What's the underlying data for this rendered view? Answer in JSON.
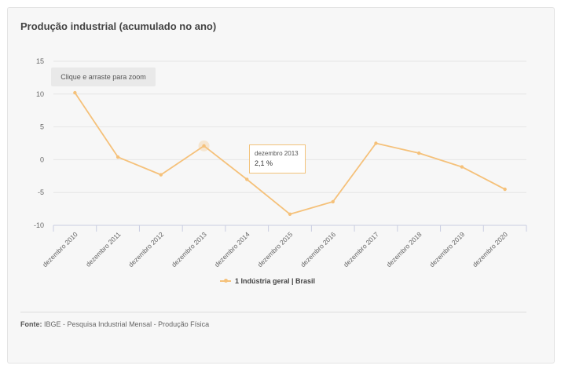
{
  "chart_title": "Produção industrial (acumulado no ano)",
  "zoom_hint": "Clique e arraste para zoom",
  "tooltip": {
    "label": "dezembro 2013",
    "value": "2,1 %"
  },
  "legend_label": "1 Indústria geral | Brasil",
  "source": {
    "label": "Fonte:",
    "text": "IBGE - Pesquisa Industrial Mensal - Produção Física"
  },
  "colors": {
    "series": "#f5c17a",
    "grid": "#e6e6e6",
    "axis": "#c9cde0",
    "text": "#666666"
  },
  "chart_data": {
    "type": "line",
    "title": "Produção industrial (acumulado no ano)",
    "categories": [
      "dezembro 2010",
      "dezembro 2011",
      "dezembro 2012",
      "dezembro 2013",
      "dezembro 2014",
      "dezembro 2015",
      "dezembro 2016",
      "dezembro 2017",
      "dezembro 2018",
      "dezembro 2019",
      "dezembro 2020"
    ],
    "series": [
      {
        "name": "1 Indústria geral | Brasil",
        "values": [
          10.2,
          0.4,
          -2.3,
          2.1,
          -3.0,
          -8.3,
          -6.4,
          2.5,
          1.0,
          -1.1,
          -4.5
        ]
      }
    ],
    "yticks": [
      15,
      10,
      5,
      0,
      -5,
      -10
    ],
    "ylim": [
      -10,
      15
    ],
    "grid": true,
    "legend_position": "bottom-center",
    "highlighted_category": "dezembro 2013"
  }
}
